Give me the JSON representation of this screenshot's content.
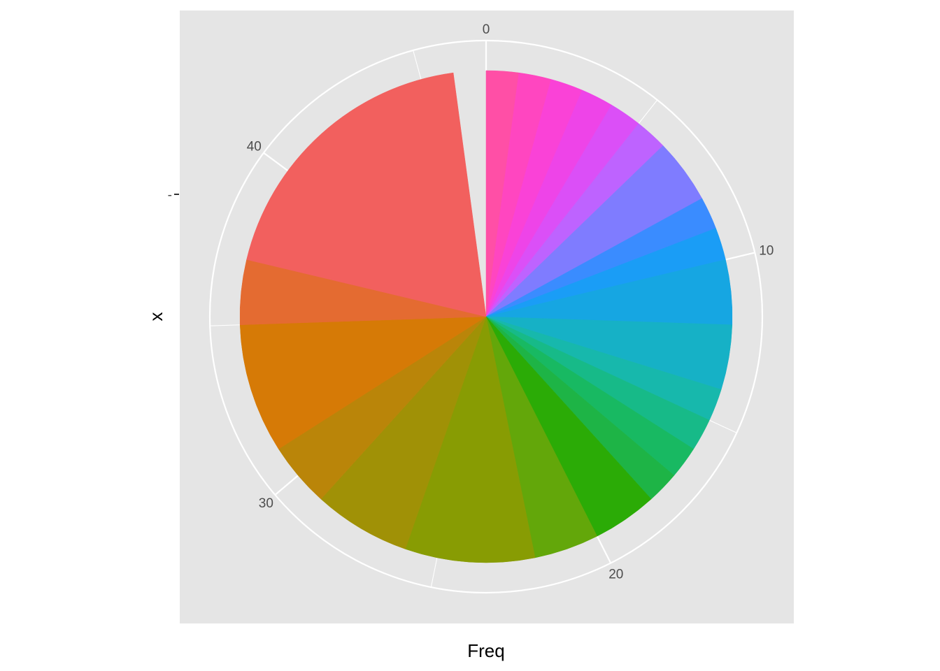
{
  "chart_data": {
    "type": "pie",
    "title": "",
    "xlabel": "Freq",
    "ylabel": "x",
    "y_tick_labels": [
      "-"
    ],
    "angular_axis": {
      "range": [
        0,
        47
      ],
      "ticks": [
        0,
        10,
        20,
        30,
        40
      ],
      "tick_labels": [
        "0",
        "10",
        "20",
        "30",
        "40"
      ]
    },
    "legend": "none",
    "panel_background": "#e5e5e5",
    "grid_color": "#ffffff",
    "slices": [
      {
        "value": 1,
        "color": "#FF4FA6"
      },
      {
        "value": 1,
        "color": "#FF46C0"
      },
      {
        "value": 1,
        "color": "#FA42D7"
      },
      {
        "value": 1,
        "color": "#EE44E8"
      },
      {
        "value": 1,
        "color": "#DB4FF7"
      },
      {
        "value": 1,
        "color": "#BE63FF"
      },
      {
        "value": 2,
        "color": "#7F7CFF"
      },
      {
        "value": 1,
        "color": "#3A8CFF"
      },
      {
        "value": 1,
        "color": "#1A9DF6"
      },
      {
        "value": 2,
        "color": "#16A6E2"
      },
      {
        "value": 2,
        "color": "#16B1C6"
      },
      {
        "value": 1,
        "color": "#17B8AC"
      },
      {
        "value": 1,
        "color": "#17BA88"
      },
      {
        "value": 1,
        "color": "#18B962"
      },
      {
        "value": 1,
        "color": "#1EB446"
      },
      {
        "value": 2,
        "color": "#2BAB06"
      },
      {
        "value": 2,
        "color": "#63A70A"
      },
      {
        "value": 4,
        "color": "#889C03"
      },
      {
        "value": 3,
        "color": "#A09106"
      },
      {
        "value": 2,
        "color": "#BA8509"
      },
      {
        "value": 4,
        "color": "#D67A06"
      },
      {
        "value": 2,
        "color": "#E46B31"
      },
      {
        "value": 9,
        "color": "#F2605E"
      }
    ]
  }
}
